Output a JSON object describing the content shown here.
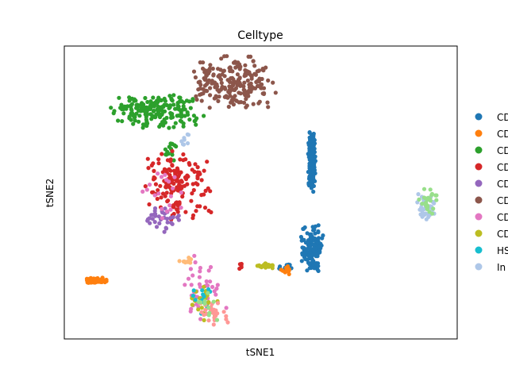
{
  "chart_data": {
    "type": "scatter",
    "title": "Celltype",
    "xlabel": "tSNE1",
    "ylabel": "tSNE2",
    "xlim": [
      0,
      100
    ],
    "ylim": [
      0,
      100
    ],
    "grid": false,
    "legend_position": "right (outside plot, partially clipped)",
    "series": [
      {
        "name": "CD",
        "color": "#1f77b4",
        "clusters": [
          {
            "x": [
              62,
              64
            ],
            "y": [
              50,
              72
            ],
            "n": 220
          },
          {
            "x": [
              60,
              66
            ],
            "y": [
              22,
              40
            ],
            "n": 130
          },
          {
            "x": [
              54,
              58
            ],
            "y": [
              23,
              26
            ],
            "n": 15
          }
        ]
      },
      {
        "name": "CD",
        "color": "#ff7f0e",
        "clusters": [
          {
            "x": [
              5,
              11
            ],
            "y": [
              19,
              21
            ],
            "n": 70
          },
          {
            "x": [
              55,
              59
            ],
            "y": [
              22,
              25
            ],
            "n": 10
          }
        ]
      },
      {
        "name": "CD",
        "color": "#2ca02c",
        "clusters": [
          {
            "x": [
              10,
              36
            ],
            "y": [
              71,
              84
            ],
            "n": 190
          },
          {
            "x": [
              25,
              29
            ],
            "y": [
              60,
              68
            ],
            "n": 15
          }
        ]
      },
      {
        "name": "CD",
        "color": "#d62728",
        "clusters": [
          {
            "x": [
              20,
              38
            ],
            "y": [
              40,
              65
            ],
            "n": 150
          },
          {
            "x": [
              44,
              46
            ],
            "y": [
              23,
              26
            ],
            "n": 5
          }
        ]
      },
      {
        "name": "CD",
        "color": "#9467bd",
        "clusters": [
          {
            "x": [
              19,
              31
            ],
            "y": [
              36,
              46
            ],
            "n": 35
          }
        ]
      },
      {
        "name": "CD",
        "color": "#8c564b",
        "clusters": [
          {
            "x": [
              32,
              54
            ],
            "y": [
              78,
              97
            ],
            "n": 230
          }
        ]
      },
      {
        "name": "CD",
        "color": "#e377c2",
        "clusters": [
          {
            "x": [
              29,
              42
            ],
            "y": [
              5,
              30
            ],
            "n": 45
          },
          {
            "x": [
              19,
              32
            ],
            "y": [
              36,
              62
            ],
            "n": 20
          }
        ]
      },
      {
        "name": "CD",
        "color": "#bcbd22",
        "clusters": [
          {
            "x": [
              48,
              54
            ],
            "y": [
              24,
              26
            ],
            "n": 25
          },
          {
            "x": [
              31,
              40
            ],
            "y": [
              5,
              20
            ],
            "n": 20
          }
        ]
      },
      {
        "name": "HS",
        "color": "#17becf",
        "clusters": [
          {
            "x": [
              32,
              40
            ],
            "y": [
              8,
              18
            ],
            "n": 12
          }
        ]
      },
      {
        "name": "In",
        "color": "#aec7e8",
        "clusters": [
          {
            "x": [
              89,
              95
            ],
            "y": [
              40,
              50
            ],
            "n": 40
          },
          {
            "x": [
              29,
              32
            ],
            "y": [
              65,
              72
            ],
            "n": 8
          }
        ]
      },
      {
        "name": "",
        "color": "#ff9896",
        "clusters": [
          {
            "x": [
              34,
              42
            ],
            "y": [
              4,
              14
            ],
            "n": 30
          }
        ]
      },
      {
        "name": "",
        "color": "#98df8a",
        "clusters": [
          {
            "x": [
              90,
              96
            ],
            "y": [
              42,
              52
            ],
            "n": 25
          },
          {
            "x": [
              32,
              40
            ],
            "y": [
              6,
              18
            ],
            "n": 10
          }
        ]
      },
      {
        "name": "",
        "color": "#ffbb78",
        "clusters": [
          {
            "x": [
              29,
              33
            ],
            "y": [
              25,
              28
            ],
            "n": 10
          }
        ]
      }
    ]
  }
}
